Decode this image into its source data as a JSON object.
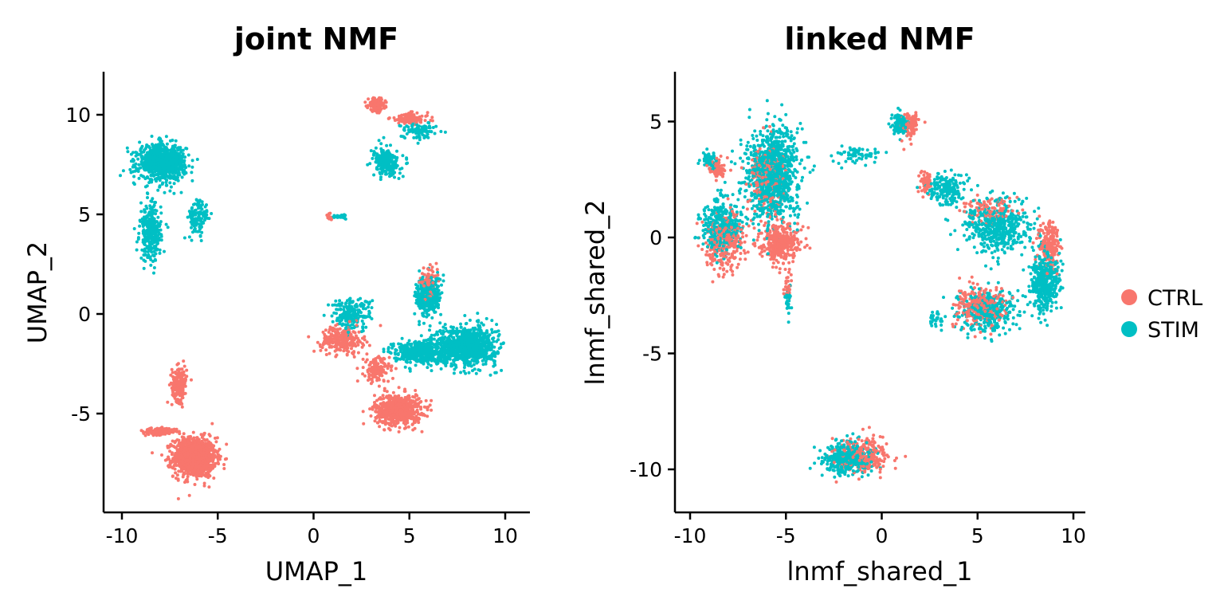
{
  "chart_data": [
    {
      "type": "scatter",
      "title": "joint NMF",
      "xlabel": "UMAP_1",
      "ylabel": "UMAP_2",
      "xlim": [
        -11,
        11
      ],
      "ylim": [
        -10,
        12
      ],
      "xticks": [
        -10,
        -5,
        0,
        5,
        10
      ],
      "yticks": [
        -5,
        0,
        5,
        10
      ],
      "tick_labels_x": [
        "-10",
        "-5",
        "0",
        "5",
        "10"
      ],
      "tick_labels_y": [
        "-5",
        "0",
        "5",
        "10"
      ],
      "grid": false,
      "series": [
        {
          "name": "CTRL",
          "clusters": [
            {
              "cx": -6.2,
              "cy": -7.2,
              "sx": 1.0,
              "sy": 0.9,
              "n": 1100
            },
            {
              "cx": -7.0,
              "cy": -3.5,
              "sx": 0.35,
              "sy": 0.8,
              "n": 200
            },
            {
              "cx": -8.0,
              "cy": -5.9,
              "sx": 0.8,
              "sy": 0.15,
              "n": 150
            },
            {
              "cx": 4.4,
              "cy": -4.8,
              "sx": 1.1,
              "sy": 0.7,
              "n": 650
            },
            {
              "cx": 1.5,
              "cy": -1.3,
              "sx": 1.0,
              "sy": 0.6,
              "n": 250
            },
            {
              "cx": 3.3,
              "cy": -2.8,
              "sx": 0.6,
              "sy": 0.6,
              "n": 150
            },
            {
              "cx": 3.3,
              "cy": 10.5,
              "sx": 0.4,
              "sy": 0.3,
              "n": 150
            },
            {
              "cx": 5.0,
              "cy": 9.8,
              "sx": 0.9,
              "sy": 0.25,
              "n": 120
            },
            {
              "cx": 6.0,
              "cy": 1.6,
              "sx": 0.4,
              "sy": 0.6,
              "n": 80
            },
            {
              "cx": 0.8,
              "cy": 4.9,
              "sx": 0.15,
              "sy": 0.15,
              "n": 15
            }
          ]
        },
        {
          "name": "STIM",
          "clusters": [
            {
              "cx": -7.9,
              "cy": 7.6,
              "sx": 1.1,
              "sy": 0.8,
              "n": 900
            },
            {
              "cx": -8.5,
              "cy": 4.1,
              "sx": 0.5,
              "sy": 1.3,
              "n": 300
            },
            {
              "cx": -6.0,
              "cy": 4.8,
              "sx": 0.5,
              "sy": 0.9,
              "n": 120
            },
            {
              "cx": 8.0,
              "cy": -1.6,
              "sx": 1.4,
              "sy": 0.9,
              "n": 900
            },
            {
              "cx": 5.5,
              "cy": -1.9,
              "sx": 1.2,
              "sy": 0.5,
              "n": 450
            },
            {
              "cx": 2.0,
              "cy": 0.0,
              "sx": 0.9,
              "sy": 0.7,
              "n": 220
            },
            {
              "cx": 6.0,
              "cy": 0.9,
              "sx": 0.6,
              "sy": 0.9,
              "n": 350
            },
            {
              "cx": 3.8,
              "cy": 7.6,
              "sx": 0.6,
              "sy": 0.6,
              "n": 250
            },
            {
              "cx": 5.5,
              "cy": 9.2,
              "sx": 0.8,
              "sy": 0.4,
              "n": 90
            },
            {
              "cx": 1.4,
              "cy": 4.9,
              "sx": 0.3,
              "sy": 0.1,
              "n": 25
            }
          ]
        }
      ]
    },
    {
      "type": "scatter",
      "title": "linked NMF",
      "xlabel": "lnmf_shared_1",
      "ylabel": "lnmf_shared_2",
      "xlim": [
        -10.5,
        10.5
      ],
      "ylim": [
        -12,
        7
      ],
      "xticks": [
        -10,
        -5,
        0,
        5,
        10
      ],
      "yticks": [
        -10,
        -5,
        0,
        5
      ],
      "tick_labels_x": [
        "-10",
        "-5",
        "0",
        "5",
        "10"
      ],
      "tick_labels_y": [
        "-10",
        "-5",
        "0",
        "5"
      ],
      "grid": false,
      "series": [
        {
          "name": "CTRL",
          "clusters": [
            {
              "cx": -5.3,
              "cy": -0.2,
              "sx": 1.0,
              "sy": 0.8,
              "n": 350
            },
            {
              "cx": -8.2,
              "cy": -0.2,
              "sx": 0.9,
              "sy": 1.1,
              "n": 300
            },
            {
              "cx": -8.6,
              "cy": 3.0,
              "sx": 0.4,
              "sy": 0.4,
              "n": 80
            },
            {
              "cx": -6.0,
              "cy": 2.5,
              "sx": 0.9,
              "sy": 1.5,
              "n": 200
            },
            {
              "cx": 8.7,
              "cy": -0.3,
              "sx": 0.5,
              "sy": 0.9,
              "n": 200
            },
            {
              "cx": 5.0,
              "cy": -3.0,
              "sx": 1.2,
              "sy": 0.8,
              "n": 250
            },
            {
              "cx": 1.5,
              "cy": 4.8,
              "sx": 0.4,
              "sy": 0.5,
              "n": 100
            },
            {
              "cx": 2.3,
              "cy": 2.3,
              "sx": 0.3,
              "sy": 0.4,
              "n": 60
            },
            {
              "cx": -1.0,
              "cy": -9.4,
              "sx": 1.2,
              "sy": 0.7,
              "n": 250
            },
            {
              "cx": -4.9,
              "cy": -2.2,
              "sx": 0.2,
              "sy": 0.5,
              "n": 25
            },
            {
              "cx": 5.6,
              "cy": 1.2,
              "sx": 1.2,
              "sy": 0.5,
              "n": 100
            }
          ]
        },
        {
          "name": "STIM",
          "clusters": [
            {
              "cx": -5.7,
              "cy": 2.7,
              "sx": 1.3,
              "sy": 1.8,
              "n": 1000
            },
            {
              "cx": -8.4,
              "cy": 0.5,
              "sx": 0.9,
              "sy": 1.1,
              "n": 350
            },
            {
              "cx": -9.0,
              "cy": 3.3,
              "sx": 0.4,
              "sy": 0.3,
              "n": 60
            },
            {
              "cx": 6.0,
              "cy": 0.5,
              "sx": 1.6,
              "sy": 1.0,
              "n": 500
            },
            {
              "cx": 8.5,
              "cy": -1.8,
              "sx": 0.7,
              "sy": 1.2,
              "n": 400
            },
            {
              "cx": 5.5,
              "cy": -3.2,
              "sx": 1.3,
              "sy": 0.8,
              "n": 350
            },
            {
              "cx": 3.4,
              "cy": 2.1,
              "sx": 0.8,
              "sy": 0.6,
              "n": 200
            },
            {
              "cx": 1.0,
              "cy": 4.9,
              "sx": 0.4,
              "sy": 0.4,
              "n": 150
            },
            {
              "cx": -1.3,
              "cy": 3.6,
              "sx": 1.1,
              "sy": 0.4,
              "n": 60
            },
            {
              "cx": -4.9,
              "cy": -2.6,
              "sx": 0.15,
              "sy": 0.5,
              "n": 40
            },
            {
              "cx": -1.8,
              "cy": -9.5,
              "sx": 1.1,
              "sy": 0.6,
              "n": 400
            },
            {
              "cx": 2.8,
              "cy": -3.6,
              "sx": 0.4,
              "sy": 0.3,
              "n": 30
            }
          ]
        }
      ]
    }
  ],
  "colors": {
    "CTRL": "#F8766D",
    "STIM": "#00BFC4"
  },
  "legend": {
    "placement": "right",
    "items": [
      {
        "label": "CTRL",
        "color": "#F8766D"
      },
      {
        "label": "STIM",
        "color": "#00BFC4"
      }
    ]
  }
}
